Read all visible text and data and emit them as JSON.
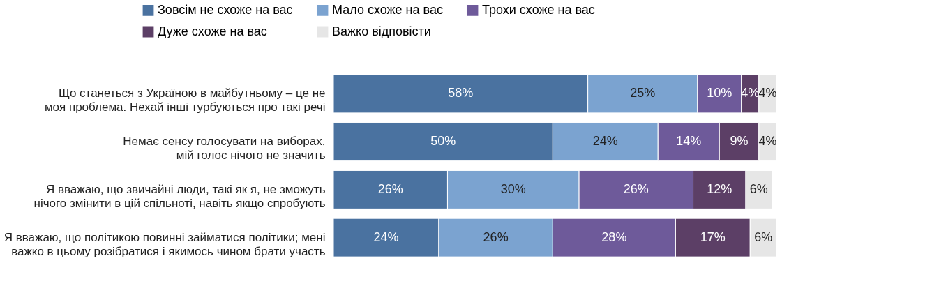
{
  "chart_data": {
    "type": "bar",
    "orientation": "horizontal",
    "stacked": true,
    "legend": "top",
    "categories": [
      "Що станеться з Україною в майбутньому – це не моя проблема. Нехай інші турбуються про такі речі",
      "Немає сенсу голосувати на виборах, мій голос нічого не значить",
      "Я вважаю, що звичайні люди, такі як я, не зможуть нічого змінити в цій спільноті, навіть якщо спробують",
      "Я вважаю, що політикою повинні займатися політики; мені важко в цьому розібратися і якимось чином брати участь"
    ],
    "series": [
      {
        "name": "Зовсім не схоже на вас",
        "color": "#4a72a0",
        "values": [
          58,
          50,
          26,
          24
        ],
        "value_labels": [
          "58%",
          "50%",
          "26%",
          "24%"
        ]
      },
      {
        "name": "Мало схоже на вас",
        "color": "#7ba3d0",
        "values": [
          25,
          24,
          30,
          26
        ],
        "value_labels": [
          "25%",
          "24%",
          "30%",
          "26%"
        ]
      },
      {
        "name": "Трохи схоже на вас",
        "color": "#6e5a9a",
        "values": [
          10,
          14,
          26,
          28
        ],
        "value_labels": [
          "10%",
          "14%",
          "26%",
          "28%"
        ]
      },
      {
        "name": "Дуже схоже на вас",
        "color": "#5c3f66",
        "values": [
          4,
          9,
          12,
          17
        ],
        "value_labels": [
          "4%",
          "9%",
          "12%",
          "17%"
        ]
      },
      {
        "name": "Важко відповісти",
        "color": "#e6e6e6",
        "values": [
          4,
          4,
          6,
          6
        ],
        "value_labels": [
          "4%",
          "4%",
          "6%",
          "6%"
        ]
      }
    ]
  }
}
